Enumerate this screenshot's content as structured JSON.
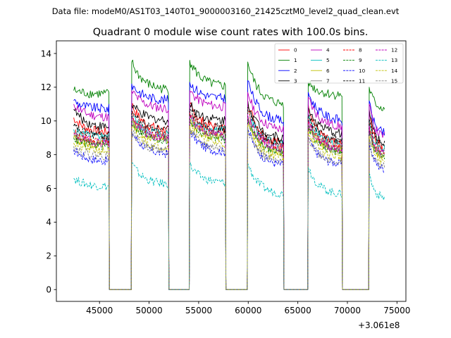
{
  "chart_data": {
    "type": "line",
    "suptitle": "Data file: modeM0/AS1T03_140T01_9000003160_21425cztM0_level2_quad_clean.evt",
    "title": "Quadrant 0 module wise count rates with 100.0s bins.",
    "xlabel": "",
    "ylabel": "",
    "x_offset_label": "+3.061e8",
    "xlim": [
      40650,
      75900
    ],
    "ylim": [
      -0.7,
      14.75
    ],
    "xticks": [
      45000,
      50000,
      55000,
      60000,
      65000,
      70000,
      75000
    ],
    "xtick_labels": [
      "45000",
      "50000",
      "55000",
      "60000",
      "65000",
      "70000",
      "75000"
    ],
    "yticks": [
      0,
      2,
      4,
      6,
      8,
      10,
      12,
      14
    ],
    "ytick_labels": [
      "0",
      "2",
      "4",
      "6",
      "8",
      "10",
      "12",
      "14"
    ],
    "grid": false,
    "legend_position": "top-right",
    "segments": [
      {
        "start": 42400,
        "end": 45950
      },
      {
        "start": 48250,
        "end": 51950
      },
      {
        "start": 54100,
        "end": 57700
      },
      {
        "start": 59950,
        "end": 63550
      },
      {
        "start": 66050,
        "end": 69450
      },
      {
        "start": 72200,
        "end": 73750
      }
    ],
    "gaps": [
      {
        "start": 46000,
        "end": 48200
      },
      {
        "start": 52000,
        "end": 54050
      },
      {
        "start": 57750,
        "end": 59900
      },
      {
        "start": 63600,
        "end": 66000
      },
      {
        "start": 69500,
        "end": 72150
      }
    ],
    "series": [
      {
        "name": "0",
        "color": "#ff0000",
        "dash": "solid",
        "start_levels": [
          10.2,
          11.0,
          11.0,
          11.2,
          11.0,
          10.5
        ],
        "end_levels": [
          9.3,
          9.4,
          9.5,
          8.6,
          8.5,
          8.3
        ]
      },
      {
        "name": "1",
        "color": "#008000",
        "dash": "solid",
        "start_levels": [
          11.8,
          13.5,
          13.6,
          13.5,
          12.3,
          12.0
        ],
        "end_levels": [
          11.6,
          11.8,
          12.0,
          10.9,
          11.5,
          10.7
        ]
      },
      {
        "name": "2",
        "color": "#0000ff",
        "dash": "solid",
        "start_levels": [
          11.2,
          12.2,
          12.3,
          12.4,
          11.7,
          11.2
        ],
        "end_levels": [
          10.7,
          11.2,
          11.3,
          9.9,
          10.0,
          9.2
        ]
      },
      {
        "name": "3",
        "color": "#000000",
        "dash": "solid",
        "start_levels": [
          10.7,
          11.0,
          11.0,
          11.2,
          10.8,
          10.7
        ],
        "end_levels": [
          9.6,
          10.0,
          10.0,
          8.9,
          9.2,
          8.6
        ]
      },
      {
        "name": "4",
        "color": "#bf00bf",
        "dash": "solid",
        "start_levels": [
          11.0,
          11.8,
          11.8,
          11.7,
          11.4,
          11.0
        ],
        "end_levels": [
          10.2,
          10.7,
          10.8,
          9.4,
          9.6,
          9.0
        ]
      },
      {
        "name": "5",
        "color": "#00bfbf",
        "dash": "solid",
        "start_levels": [
          9.5,
          10.3,
          10.3,
          10.6,
          10.2,
          10.0
        ],
        "end_levels": [
          9.0,
          9.2,
          9.4,
          8.5,
          8.6,
          8.3
        ]
      },
      {
        "name": "6",
        "color": "#bfbf00",
        "dash": "solid",
        "start_levels": [
          9.0,
          10.0,
          10.0,
          10.2,
          9.8,
          9.5
        ],
        "end_levels": [
          8.6,
          8.8,
          9.0,
          8.1,
          8.2,
          7.8
        ]
      },
      {
        "name": "7",
        "color": "#808080",
        "dash": "solid",
        "start_levels": [
          9.1,
          10.1,
          10.2,
          10.3,
          9.9,
          9.5
        ],
        "end_levels": [
          8.7,
          9.0,
          9.1,
          8.2,
          8.2,
          7.9
        ]
      },
      {
        "name": "8",
        "color": "#ff0000",
        "dash": "dashed",
        "start_levels": [
          9.3,
          10.4,
          10.5,
          10.6,
          10.1,
          9.9
        ],
        "end_levels": [
          8.8,
          9.0,
          9.2,
          8.4,
          8.4,
          8.1
        ]
      },
      {
        "name": "9",
        "color": "#008000",
        "dash": "dashed",
        "start_levels": [
          9.0,
          10.0,
          10.1,
          10.2,
          9.7,
          9.4
        ],
        "end_levels": [
          8.5,
          8.8,
          8.9,
          8.0,
          8.1,
          7.8
        ]
      },
      {
        "name": "10",
        "color": "#0000ff",
        "dash": "dashed",
        "start_levels": [
          8.3,
          9.4,
          9.5,
          9.6,
          9.0,
          8.8
        ],
        "end_levels": [
          7.6,
          8.0,
          8.1,
          7.3,
          7.4,
          7.1
        ]
      },
      {
        "name": "11",
        "color": "#000000",
        "dash": "dashed",
        "start_levels": [
          9.7,
          10.6,
          10.7,
          10.8,
          10.3,
          10.1
        ],
        "end_levels": [
          9.1,
          9.4,
          9.5,
          8.6,
          8.8,
          8.5
        ]
      },
      {
        "name": "12",
        "color": "#bf00bf",
        "dash": "dashed",
        "start_levels": [
          9.2,
          10.2,
          10.3,
          10.4,
          9.9,
          9.7
        ],
        "end_levels": [
          8.7,
          8.9,
          9.1,
          8.3,
          8.3,
          8.0
        ]
      },
      {
        "name": "13",
        "color": "#00bfbf",
        "dash": "dashed",
        "start_levels": [
          6.6,
          7.5,
          7.4,
          7.5,
          7.3,
          6.9
        ],
        "end_levels": [
          6.1,
          6.2,
          6.3,
          5.6,
          5.6,
          5.4
        ]
      },
      {
        "name": "14",
        "color": "#bfbf00",
        "dash": "dashed",
        "start_levels": [
          8.7,
          9.6,
          9.7,
          9.8,
          9.4,
          9.1
        ],
        "end_levels": [
          8.2,
          8.4,
          8.6,
          7.8,
          7.8,
          7.5
        ]
      },
      {
        "name": "15",
        "color": "#808080",
        "dash": "dashed",
        "start_levels": [
          8.5,
          9.4,
          9.5,
          9.6,
          9.1,
          8.9
        ],
        "end_levels": [
          7.9,
          8.2,
          8.3,
          7.4,
          7.5,
          7.2
        ]
      }
    ]
  }
}
